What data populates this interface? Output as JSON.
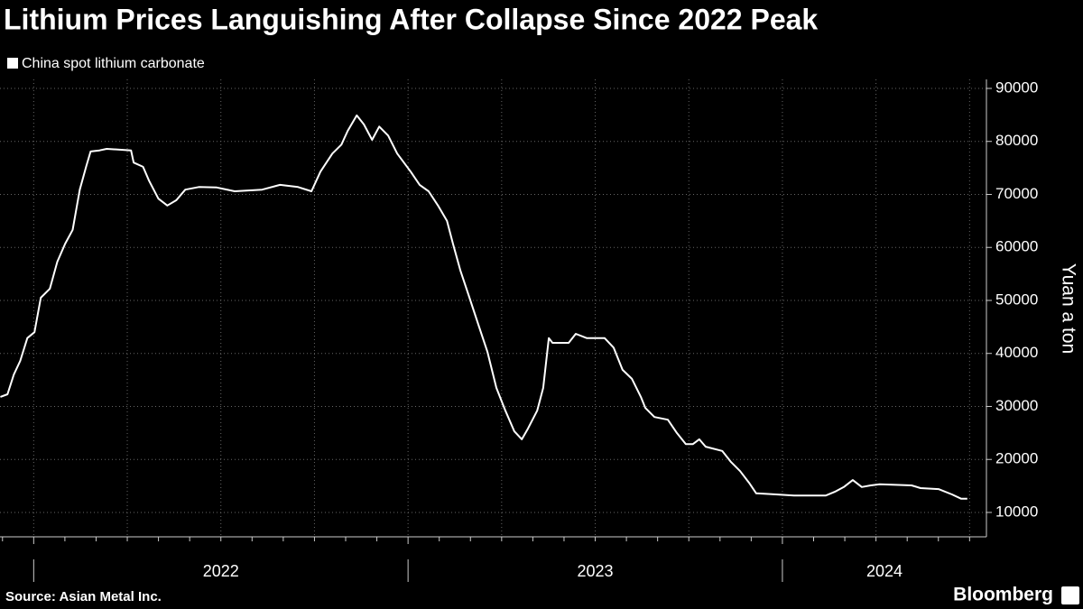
{
  "chart_data": {
    "type": "line",
    "title": "Lithium Prices Languishing After Collapse Since 2022 Peak",
    "y_label": "Yuan a ton",
    "source": "Source: Asian Metal Inc.",
    "brand": "Bloomberg",
    "x": [
      2021.911,
      2021.93,
      2021.947,
      2021.964,
      2021.983,
      2022.002,
      2022.019,
      2022.043,
      2022.063,
      2022.084,
      2022.104,
      2022.123,
      2022.14,
      2022.152,
      2022.176,
      2022.195,
      2022.26,
      2022.267,
      2022.292,
      2022.308,
      2022.333,
      2022.357,
      2022.381,
      2022.405,
      2022.441,
      2022.489,
      2022.537,
      2022.61,
      2022.658,
      2022.706,
      2022.742,
      2022.766,
      2022.798,
      2022.822,
      2022.839,
      2022.863,
      2022.882,
      2022.904,
      2022.923,
      2022.947,
      2022.971,
      2023.007,
      2023.031,
      2023.055,
      2023.08,
      2023.104,
      2023.12,
      2023.14,
      2023.164,
      2023.188,
      2023.212,
      2023.236,
      2023.26,
      2023.284,
      2023.304,
      2023.32,
      2023.345,
      2023.361,
      2023.376,
      2023.386,
      2023.429,
      2023.448,
      2023.477,
      2023.525,
      2023.549,
      2023.573,
      2023.598,
      2023.622,
      2023.634,
      2023.658,
      2023.694,
      2023.718,
      2023.742,
      2023.761,
      2023.778,
      2023.795,
      2023.839,
      2023.863,
      2023.887,
      2023.911,
      2023.93,
      2023.983,
      2024.031,
      2024.116,
      2024.14,
      2024.164,
      2024.188,
      2024.212,
      2024.236,
      2024.26,
      2024.345,
      2024.369,
      2024.417,
      2024.453,
      2024.477,
      2024.494
    ],
    "series": [
      {
        "name": "China spot lithium carbonate",
        "color": "#ffffff",
        "values": [
          31800,
          32300,
          36000,
          38600,
          42900,
          44000,
          50500,
          52200,
          57300,
          60700,
          63300,
          70900,
          75200,
          78100,
          78300,
          78600,
          78300,
          76000,
          75200,
          72600,
          69200,
          67900,
          68900,
          70900,
          71400,
          71300,
          70600,
          70900,
          71800,
          71400,
          70600,
          74300,
          77700,
          79400,
          82000,
          84900,
          83200,
          80300,
          82800,
          81100,
          77700,
          74300,
          71800,
          70600,
          67900,
          65000,
          60700,
          55600,
          50500,
          45400,
          40300,
          33500,
          29200,
          25300,
          23800,
          25800,
          29200,
          33500,
          42900,
          42000,
          42000,
          43700,
          42900,
          42900,
          41100,
          36900,
          35200,
          31800,
          29700,
          28000,
          27500,
          25000,
          22900,
          22900,
          23800,
          22400,
          21600,
          19500,
          17800,
          15600,
          13600,
          13400,
          13200,
          13200,
          13900,
          14800,
          16100,
          14800,
          15100,
          15300,
          15100,
          14600,
          14400,
          13400,
          12600,
          12600
        ]
      }
    ],
    "xlim": [
      2021.91,
      2024.545
    ],
    "xticks": [
      2022,
      2023,
      2024
    ],
    "ylim": [
      5400,
      91700
    ],
    "yticks": [
      10000,
      20000,
      30000,
      40000,
      50000,
      60000,
      70000,
      80000,
      90000
    ],
    "grid": true
  }
}
